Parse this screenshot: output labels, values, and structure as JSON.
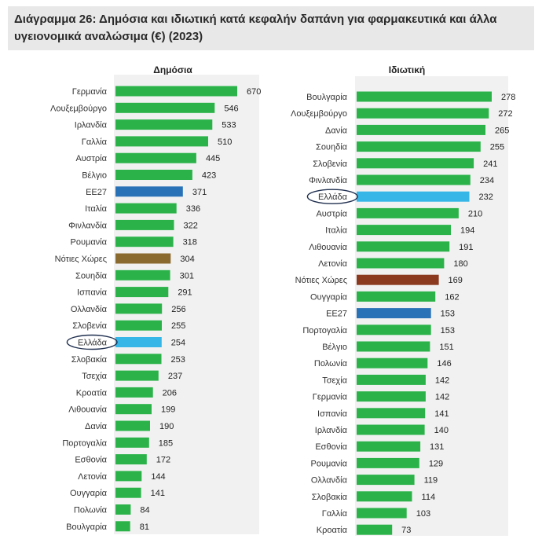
{
  "title_line1": "Διάγραμμα 26: Δημόσια και ιδιωτική κατά κεφαλήν δαπάνη για φαρμακευτικά και άλλα",
  "title_line2": "υγειονομικά αναλώσιμα (€) (2023)",
  "colors": {
    "default": "#2bb34a",
    "eu": "#2a72b8",
    "greece": "#35b6e6",
    "south_public": "#8a6a2e",
    "south_private": "#8b3a1f"
  },
  "chart_data": [
    {
      "type": "bar",
      "orientation": "horizontal",
      "title": "Δημόσια",
      "highlight": "Ελλάδα",
      "categories": [
        "Γερμανία",
        "Λουξεμβούργο",
        "Ιρλανδία",
        "Γαλλία",
        "Αυστρία",
        "Βέλγιο",
        "ΕΕ27",
        "Ιταλία",
        "Φινλανδία",
        "Ρουμανία",
        "Νότιες Χώρες",
        "Σουηδία",
        "Ισπανία",
        "Ολλανδία",
        "Σλοβενία",
        "Ελλάδα",
        "Σλοβακία",
        "Τσεχία",
        "Κροατία",
        "Λιθουανία",
        "Δανία",
        "Πορτογαλία",
        "Εσθονία",
        "Λετονία",
        "Ουγγαρία",
        "Πολωνία",
        "Βουλγαρία"
      ],
      "values": [
        670,
        546,
        533,
        510,
        445,
        423,
        371,
        336,
        322,
        318,
        304,
        301,
        291,
        256,
        255,
        254,
        253,
        237,
        206,
        199,
        190,
        185,
        172,
        144,
        141,
        84,
        81
      ],
      "colors": [
        "default",
        "default",
        "default",
        "default",
        "default",
        "default",
        "eu",
        "default",
        "default",
        "default",
        "south_public",
        "default",
        "default",
        "default",
        "default",
        "greece",
        "default",
        "default",
        "default",
        "default",
        "default",
        "default",
        "default",
        "default",
        "default",
        "default",
        "default"
      ]
    },
    {
      "type": "bar",
      "orientation": "horizontal",
      "title": "Ιδιωτική",
      "highlight": "Ελλάδα",
      "categories": [
        "Βουλγαρία",
        "Λουξεμβούργο",
        "Δανία",
        "Σουηδία",
        "Σλοβενία",
        "Φινλανδία",
        "Ελλάδα",
        "Αυστρία",
        "Ιταλία",
        "Λιθουανία",
        "Λετονία",
        "Νότιες Χώρες",
        "Ουγγαρία",
        "ΕΕ27",
        "Πορτογαλία",
        "Βέλγιο",
        "Πολωνία",
        "Τσεχία",
        "Γερμανία",
        "Ισπανία",
        "Ιρλανδία",
        "Εσθονία",
        "Ρουμανία",
        "Ολλανδία",
        "Σλοβακία",
        "Γαλλία",
        "Κροατία"
      ],
      "values": [
        278,
        272,
        265,
        255,
        241,
        234,
        232,
        210,
        194,
        191,
        180,
        169,
        162,
        153,
        153,
        151,
        146,
        142,
        142,
        141,
        140,
        131,
        129,
        119,
        114,
        103,
        73
      ],
      "colors": [
        "default",
        "default",
        "default",
        "default",
        "default",
        "default",
        "greece",
        "default",
        "default",
        "default",
        "default",
        "south_private",
        "default",
        "eu",
        "default",
        "default",
        "default",
        "default",
        "default",
        "default",
        "default",
        "default",
        "default",
        "default",
        "default",
        "default",
        "default"
      ]
    }
  ]
}
